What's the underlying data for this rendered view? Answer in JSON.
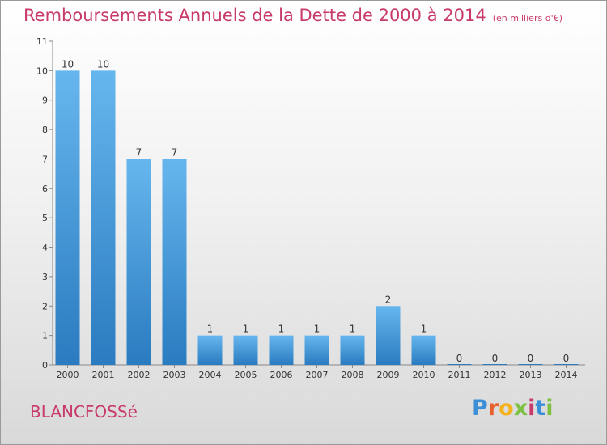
{
  "header": {
    "title": "Remboursements Annuels de la Dette de 2000 à 2014",
    "unit": "(en milliers d'€)"
  },
  "footer": {
    "commune": "BLANCFOSSé",
    "logo_letters": [
      "P",
      "r",
      "o",
      "x",
      "i",
      "t",
      "i"
    ],
    "logo_colors": [
      "#3a8fd6",
      "#e8612c",
      "#f3b21b",
      "#7cc142",
      "#c83a6b",
      "#3a8fd6",
      "#7cc142"
    ]
  },
  "colors": {
    "bar_top": "#66b6ee",
    "bar_bottom": "#2a7bc0",
    "title": "#c83a6b"
  },
  "chart_data": {
    "type": "bar",
    "title": "Remboursements Annuels de la Dette de 2000 à 2014",
    "xlabel": "",
    "ylabel": "",
    "categories": [
      "2000",
      "2001",
      "2002",
      "2003",
      "2004",
      "2005",
      "2006",
      "2007",
      "2008",
      "2009",
      "2010",
      "2011",
      "2012",
      "2013",
      "2014"
    ],
    "values": [
      10,
      10,
      7,
      7,
      1,
      1,
      1,
      1,
      1,
      2,
      1,
      0,
      0,
      0,
      0
    ],
    "data_labels": [
      "10",
      "10",
      "7",
      "7",
      "1",
      "1",
      "1",
      "1",
      "1",
      "2",
      "1",
      "0",
      "0",
      "0",
      "0"
    ],
    "ylim": [
      0,
      11
    ],
    "yticks": [
      "0",
      "1",
      "2",
      "3",
      "4",
      "5",
      "6",
      "7",
      "8",
      "9",
      "10",
      "11"
    ],
    "grid": false,
    "legend": "none"
  }
}
